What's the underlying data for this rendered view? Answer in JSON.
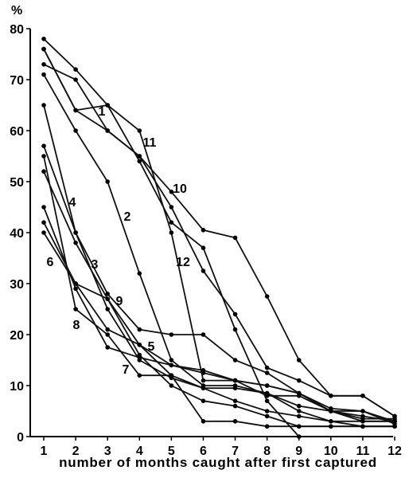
{
  "chart_data": {
    "type": "line",
    "title": "",
    "xlabel": "number of months caught after first captured",
    "ylabel": "%",
    "x": [
      1,
      2,
      3,
      4,
      5,
      6,
      7,
      8,
      9,
      10,
      11,
      12
    ],
    "xlim": [
      1,
      12
    ],
    "ylim": [
      0,
      80
    ],
    "xticks": [
      "1",
      "2",
      "3",
      "4",
      "5",
      "6",
      "7",
      "8",
      "9",
      "10",
      "11",
      "12"
    ],
    "yticks": [
      "0",
      "10",
      "20",
      "30",
      "40",
      "50",
      "60",
      "70",
      "80"
    ],
    "grid": false,
    "legend": "none",
    "series": [
      {
        "name": "1",
        "values": [
          76,
          64,
          60,
          55,
          45,
          32.5,
          24,
          13.5,
          11,
          8,
          8,
          4
        ]
      },
      {
        "name": "2",
        "values": [
          71,
          60,
          50,
          32,
          15,
          10,
          10,
          8.5,
          5,
          3,
          3,
          3
        ]
      },
      {
        "name": "3",
        "values": [
          52,
          38,
          27,
          18,
          14,
          12.5,
          11,
          8,
          8,
          5,
          4,
          3
        ]
      },
      {
        "name": "4",
        "values": [
          57,
          40,
          25,
          15,
          11.5,
          9.5,
          9.5,
          8.5,
          6,
          5,
          5,
          2.5
        ]
      },
      {
        "name": "5",
        "values": [
          42,
          30,
          21,
          18,
          12,
          9.5,
          7,
          5,
          4,
          3,
          2,
          2
        ]
      },
      {
        "name": "6",
        "values": [
          40,
          30,
          27,
          16,
          10,
          7,
          6,
          4,
          2,
          2,
          2,
          2
        ]
      },
      {
        "name": "7",
        "values": [
          45,
          29,
          17.5,
          15.5,
          14,
          13,
          11,
          10,
          8.5,
          5,
          3.5,
          3.5
        ]
      },
      {
        "name": "8",
        "values": [
          55,
          25,
          20,
          12,
          12,
          3,
          3,
          2,
          2,
          2,
          2,
          2
        ]
      },
      {
        "name": "9",
        "values": [
          65,
          40,
          28,
          21,
          20,
          20,
          15,
          12.5,
          8.5,
          5.5,
          5,
          3
        ]
      },
      {
        "name": "10",
        "values": [
          73,
          70,
          60,
          55,
          48,
          40.5,
          39,
          27.5,
          15,
          8,
          8,
          4
        ]
      },
      {
        "name": "11",
        "values": [
          78,
          72,
          65,
          60,
          40,
          11,
          11,
          10,
          8.5,
          5,
          3,
          3
        ]
      },
      {
        "name": "12",
        "values": [
          76,
          64,
          65,
          54,
          42,
          37,
          21,
          7,
          0,
          null,
          null,
          null
        ]
      }
    ]
  }
}
